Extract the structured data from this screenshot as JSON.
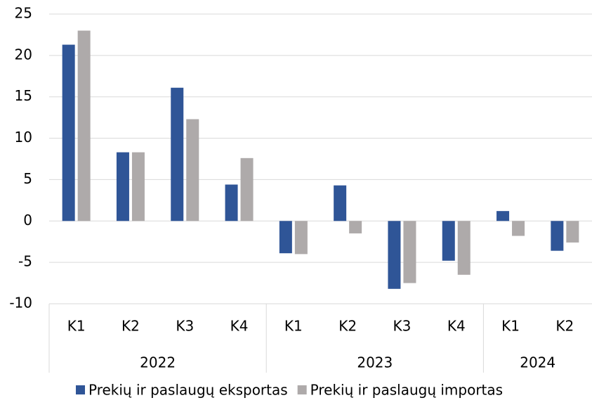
{
  "chart_data": {
    "type": "bar",
    "groups": [
      {
        "name": "2022",
        "categories": [
          "K1",
          "K2",
          "K3",
          "K4"
        ]
      },
      {
        "name": "2023",
        "categories": [
          "K1",
          "K2",
          "K3",
          "K4"
        ]
      },
      {
        "name": "2024",
        "categories": [
          "K1",
          "K2"
        ]
      }
    ],
    "series": [
      {
        "name": "Prekių ir paslaugų eksportas",
        "color": "#2f5597",
        "values": [
          21.3,
          8.3,
          16.1,
          4.4,
          -3.9,
          4.3,
          -8.2,
          -4.8,
          1.2,
          -3.6
        ]
      },
      {
        "name": "Prekių ir paslaugų importas",
        "color": "#aeaaaa",
        "values": [
          23.0,
          8.3,
          12.3,
          7.6,
          -4.0,
          -1.5,
          -7.5,
          -6.5,
          -1.8,
          -2.6
        ]
      }
    ],
    "ylim": [
      -10,
      25
    ],
    "yticks": [
      -10,
      -5,
      0,
      5,
      10,
      15,
      20,
      25
    ],
    "grid": true,
    "legend": "bottom"
  }
}
